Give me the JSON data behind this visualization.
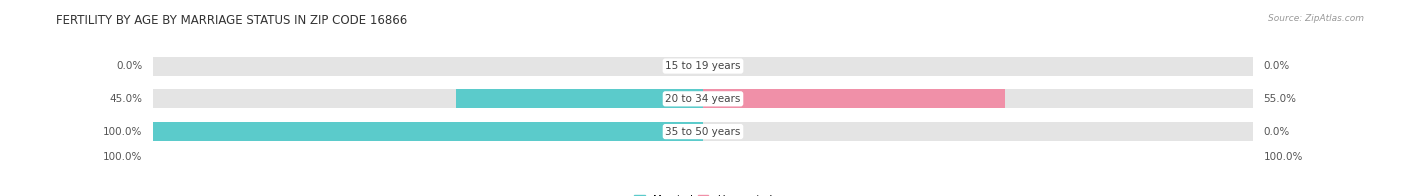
{
  "title": "FERTILITY BY AGE BY MARRIAGE STATUS IN ZIP CODE 16866",
  "source": "Source: ZipAtlas.com",
  "categories": [
    "15 to 19 years",
    "20 to 34 years",
    "35 to 50 years"
  ],
  "married_pct": [
    0.0,
    45.0,
    100.0
  ],
  "unmarried_pct": [
    0.0,
    55.0,
    0.0
  ],
  "married_color": "#5BCBCB",
  "unmarried_color": "#F090A8",
  "bar_bg_color": "#E4E4E4",
  "title_fontsize": 8.5,
  "label_fontsize": 7.5,
  "category_fontsize": 7.5,
  "source_fontsize": 6.5,
  "axis_max": 100.0,
  "left_labels": [
    "0.0%",
    "45.0%",
    "100.0%"
  ],
  "right_labels": [
    "0.0%",
    "55.0%",
    "0.0%"
  ],
  "bottom_left_label": "100.0%",
  "bottom_right_label": "100.0%"
}
